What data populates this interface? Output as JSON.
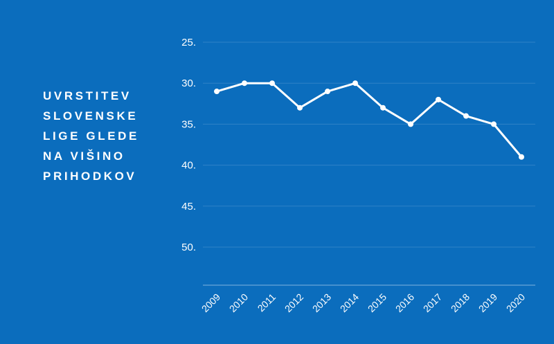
{
  "colors": {
    "background": "#0b6dbd",
    "line": "#ffffff",
    "grid": "#2f82c7",
    "axis": "#7fb3de",
    "text": "#ffffff"
  },
  "chart_data": {
    "type": "line",
    "title": "UVRSTITEV\nSLOVENSKE\nLIGE GLEDE\nNA VIŠINO\nPRIHODKOV",
    "categories": [
      "2009",
      "2010",
      "2011",
      "2012",
      "2013",
      "2014",
      "2015",
      "2016",
      "2017",
      "2018",
      "2019",
      "2020"
    ],
    "series": [
      {
        "values": [
          31,
          30,
          30,
          33,
          31,
          30,
          33,
          35,
          32,
          34,
          35,
          39
        ]
      }
    ],
    "y_ticks": [
      "25.",
      "30.",
      "35.",
      "40.",
      "45.",
      "50."
    ],
    "y_tick_values": [
      25,
      30,
      35,
      40,
      45,
      50
    ],
    "ylim": [
      25,
      55
    ],
    "y_inverted": true,
    "grid": true,
    "legend": "none",
    "xlabel": "",
    "ylabel": ""
  }
}
